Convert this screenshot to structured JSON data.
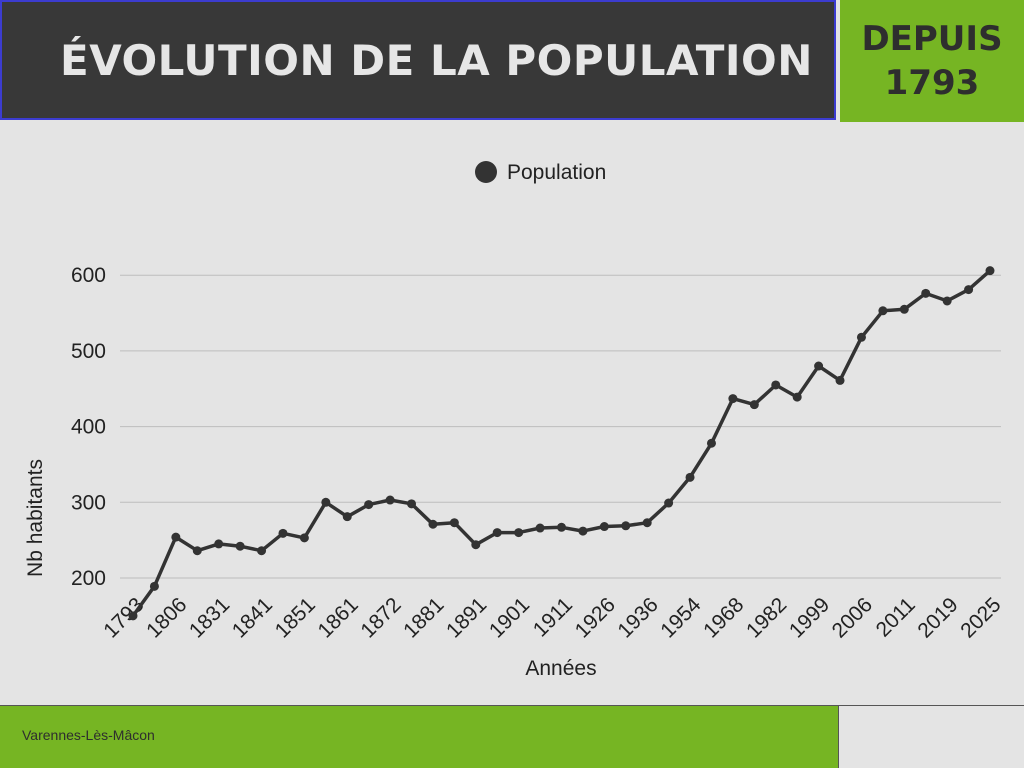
{
  "header": {
    "title": "ÉVOLUTION DE LA POPULATION",
    "since_line1": "DEPUIS",
    "since_line2": "1793"
  },
  "footer": {
    "place": "Varennes-Lès-Mâcon"
  },
  "colors": {
    "header_bg": "#383838",
    "accent": "#76b523",
    "line": "#333333",
    "background": "#e4e4e4"
  },
  "chart_data": {
    "type": "line",
    "xlabel": "Années",
    "ylabel": "Nb habitants",
    "legend": {
      "label": "Population",
      "position": "top-center"
    },
    "grid": true,
    "yticks": [
      200,
      300,
      400,
      500,
      600
    ],
    "x_tick_labels": [
      "1793",
      "1806",
      "1831",
      "1841",
      "1851",
      "1861",
      "1872",
      "1881",
      "1891",
      "1901",
      "1911",
      "1926",
      "1936",
      "1954",
      "1968",
      "1982",
      "1999",
      "2006",
      "2011",
      "2019",
      "2025"
    ],
    "series": [
      {
        "name": "Population",
        "values": [
          150,
          189,
          254,
          236,
          245,
          242,
          236,
          259,
          253,
          300,
          281,
          297,
          303,
          298,
          271,
          273,
          244,
          260,
          260,
          266,
          267,
          262,
          268,
          269,
          273,
          299,
          333,
          378,
          437,
          429,
          455,
          439,
          480,
          461,
          518,
          553,
          555,
          576,
          566,
          581,
          606
        ]
      }
    ]
  }
}
